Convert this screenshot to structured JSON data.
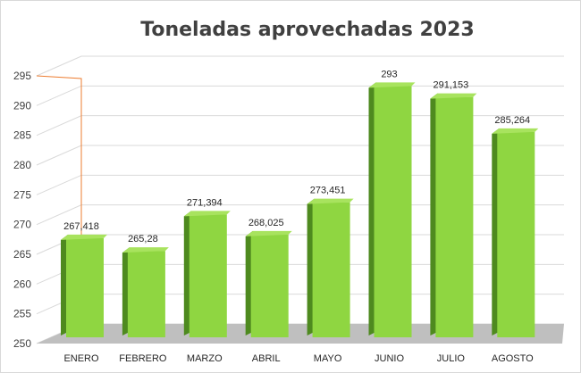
{
  "chart_data": {
    "type": "bar",
    "title": "Toneladas aprovechadas 2023",
    "categories": [
      "ENERO",
      "FEBRERO",
      "MARZO",
      "ABRIL",
      "MAYO",
      "JUNIO",
      "JULIO",
      "AGOSTO"
    ],
    "values": [
      267.418,
      265.28,
      271.394,
      268.025,
      273.451,
      293,
      291.153,
      285.264
    ],
    "data_labels": [
      "267,418",
      "265,28",
      "271,394",
      "268,025",
      "273,451",
      "293",
      "291,153",
      "285,264"
    ],
    "yticks": [
      "250",
      "255",
      "260",
      "265",
      "270",
      "275",
      "280",
      "285",
      "290",
      "295"
    ],
    "ylim": [
      250,
      295
    ],
    "grid": true,
    "bar_style": "3d",
    "colors": {
      "bar_front": "#8fd641",
      "bar_side": "#4e8a1f",
      "bar_top": "#a8e35e",
      "floor": "#bfbfbf",
      "grid": "#d9d9d9",
      "axis_accent": "#ed7d31"
    }
  }
}
